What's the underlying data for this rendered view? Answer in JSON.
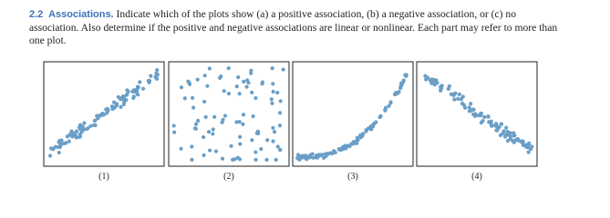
{
  "exercise": {
    "number": "2.2",
    "title": "Associations.",
    "text": "Indicate which of the plots show (a) a positive association, (b) a negative association, or (c) no association. Also determine if the positive and negative associations are linear or nonlinear. Each part may refer to more than one plot."
  },
  "plots": [
    {
      "label": "(1)"
    },
    {
      "label": "(2)"
    },
    {
      "label": "(3)"
    },
    {
      "label": "(4)"
    }
  ]
}
